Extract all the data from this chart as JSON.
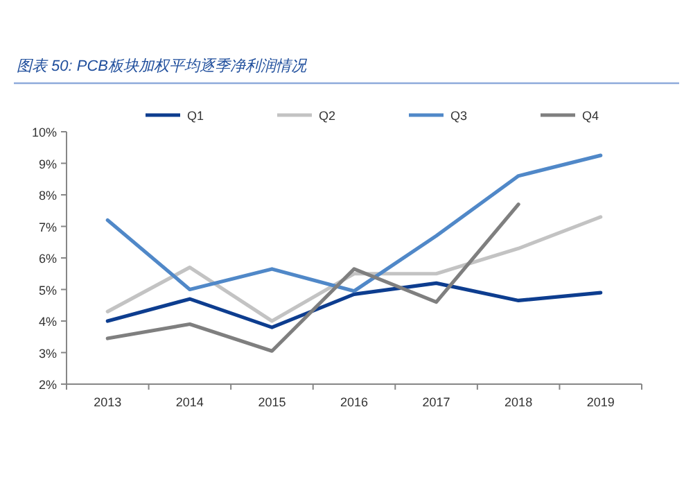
{
  "chart_data": {
    "type": "line",
    "title": "图表 50: PCB板块加权平均逐季净利润情况",
    "categories": [
      "2013",
      "2014",
      "2015",
      "2016",
      "2017",
      "2018",
      "2019"
    ],
    "series": [
      {
        "name": "Q1",
        "color": "#0d3d8f",
        "values": [
          4.0,
          4.7,
          3.8,
          4.85,
          5.2,
          4.65,
          4.9
        ]
      },
      {
        "name": "Q2",
        "color": "#c3c3c3",
        "values": [
          4.3,
          5.7,
          4.0,
          5.5,
          5.5,
          6.3,
          7.3
        ]
      },
      {
        "name": "Q3",
        "color": "#5088c8",
        "values": [
          7.2,
          5.0,
          5.65,
          4.95,
          6.7,
          8.6,
          9.25
        ]
      },
      {
        "name": "Q4",
        "color": "#7f7f7f",
        "values": [
          3.45,
          3.9,
          3.05,
          5.65,
          4.6,
          7.7,
          null
        ]
      }
    ],
    "ylim": [
      2,
      10
    ],
    "yticks": [
      {
        "value": 2,
        "label": "2%"
      },
      {
        "value": 3,
        "label": "3%"
      },
      {
        "value": 4,
        "label": "4%"
      },
      {
        "value": 5,
        "label": "5%"
      },
      {
        "value": 6,
        "label": "6%"
      },
      {
        "value": 7,
        "label": "7%"
      },
      {
        "value": 8,
        "label": "8%"
      },
      {
        "value": 9,
        "label": "9%"
      },
      {
        "value": 10,
        "label": "10%"
      }
    ],
    "grid": false,
    "legend": "top",
    "marker": "none",
    "line_style": "solid"
  }
}
